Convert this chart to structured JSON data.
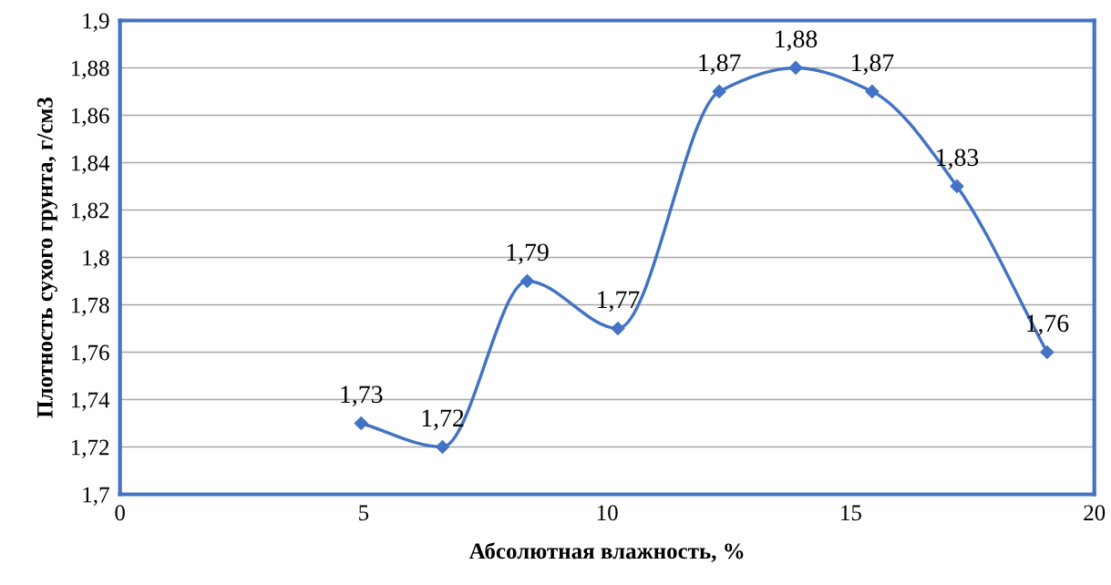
{
  "chart_data": {
    "type": "line",
    "xlabel": "Абсолютная влажность, %",
    "ylabel": "Плотность сухого грунта, г/см3",
    "x": [
      4.95,
      6.62,
      8.36,
      10.22,
      12.3,
      13.87,
      15.44,
      17.18,
      19.03
    ],
    "series": [
      {
        "color": "#4472c4",
        "values": [
          1.73,
          1.72,
          1.79,
          1.77,
          1.87,
          1.88,
          1.87,
          1.83,
          1.76
        ],
        "value_labels": [
          "1,73",
          "1,72",
          "1,79",
          "1,77",
          "1,87",
          "1,88",
          "1,87",
          "1,83",
          "1,76"
        ]
      }
    ],
    "xlim": [
      0,
      20
    ],
    "xticks": [
      0,
      5,
      10,
      15,
      20
    ],
    "ylim": [
      1.7,
      1.9
    ],
    "yticks": [
      {
        "value": 1.7,
        "label": "1,7"
      },
      {
        "value": 1.72,
        "label": "1,72"
      },
      {
        "value": 1.74,
        "label": "1,74"
      },
      {
        "value": 1.76,
        "label": "1,76"
      },
      {
        "value": 1.78,
        "label": "1,78"
      },
      {
        "value": 1.8,
        "label": "1,8"
      },
      {
        "value": 1.82,
        "label": "1,82"
      },
      {
        "value": 1.84,
        "label": "1,84"
      },
      {
        "value": 1.86,
        "label": "1,86"
      },
      {
        "value": 1.88,
        "label": "1,88"
      },
      {
        "value": 1.9,
        "label": "1,9"
      }
    ],
    "grid": "y",
    "marker": "diamond",
    "line_style": "solid",
    "legend": false
  }
}
